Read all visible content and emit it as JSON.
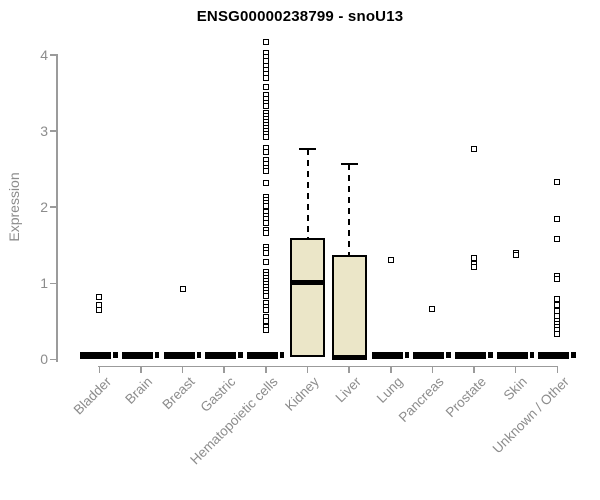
{
  "chart_data": {
    "type": "boxplot",
    "title": "ENSG00000238799 - snoU13",
    "ylabel": "Expression",
    "ylim": [
      0,
      4.3
    ],
    "yticks": [
      0,
      1,
      2,
      3,
      4
    ],
    "grid": false,
    "legend": "none",
    "colors": {
      "box_fill": "#EBE6C8",
      "ink": "#000000",
      "axis_line": "#9b9b9b",
      "label_gray": "#8c8c8c"
    },
    "categories": [
      {
        "label": "Bladder",
        "flat": true,
        "box": {
          "q1": 0,
          "median": 0,
          "q3": 0.02,
          "whisker_high": 0.02
        },
        "outliers": [
          0.82,
          0.72,
          0.65
        ]
      },
      {
        "label": "Brain",
        "flat": true,
        "box": {
          "q1": 0,
          "median": 0,
          "q3": 0.02,
          "whisker_high": 0.02
        },
        "outliers": []
      },
      {
        "label": "Breast",
        "flat": true,
        "box": {
          "q1": 0,
          "median": 0,
          "q3": 0.02,
          "whisker_high": 0.02
        },
        "outliers": [
          0.92
        ]
      },
      {
        "label": "Gastric",
        "flat": true,
        "box": {
          "q1": 0,
          "median": 0,
          "q3": 0.02,
          "whisker_high": 0.02
        },
        "outliers": []
      },
      {
        "label": "Hematopoietic cells",
        "flat": true,
        "box": {
          "q1": 0,
          "median": 0,
          "q3": 0.02,
          "whisker_high": 0.02
        },
        "outliers": [
          4.17,
          4.03,
          3.97,
          3.92,
          3.85,
          3.8,
          3.75,
          3.7,
          3.58,
          3.47,
          3.42,
          3.37,
          3.33,
          3.24,
          3.2,
          3.16,
          3.12,
          3.08,
          3.04,
          3.0,
          2.96,
          2.92,
          2.78,
          2.73,
          2.62,
          2.57,
          2.52,
          2.47,
          2.32,
          2.13,
          2.1,
          2.06,
          2.02,
          1.94,
          1.89,
          1.84,
          1.79,
          1.7,
          1.66,
          1.48,
          1.44,
          1.4,
          1.28,
          1.15,
          1.11,
          1.07,
          1.03,
          0.99,
          0.95,
          0.91,
          0.87,
          0.83,
          0.74,
          0.69,
          0.65,
          0.56,
          0.51,
          0.43,
          0.38
        ]
      },
      {
        "label": "Kidney",
        "flat": false,
        "box": {
          "q1": 0.03,
          "median": 1.01,
          "q3": 1.59,
          "whisker_high": 2.77
        },
        "outliers": []
      },
      {
        "label": "Liver",
        "flat": false,
        "box": {
          "q1": 0.0,
          "median": 0.03,
          "q3": 1.37,
          "whisker_high": 2.57
        },
        "outliers": []
      },
      {
        "label": "Lung",
        "flat": true,
        "box": {
          "q1": 0,
          "median": 0,
          "q3": 0.02,
          "whisker_high": 0.02
        },
        "outliers": [
          1.31
        ]
      },
      {
        "label": "Pancreas",
        "flat": true,
        "box": {
          "q1": 0,
          "median": 0,
          "q3": 0.02,
          "whisker_high": 0.02
        },
        "outliers": [
          0.66
        ]
      },
      {
        "label": "Prostate",
        "flat": true,
        "box": {
          "q1": 0,
          "median": 0,
          "q3": 0.02,
          "whisker_high": 0.02
        },
        "outliers": [
          2.77,
          1.33,
          1.26,
          1.21
        ]
      },
      {
        "label": "Skin",
        "flat": true,
        "box": {
          "q1": 0,
          "median": 0,
          "q3": 0.02,
          "whisker_high": 0.02
        },
        "outliers": [
          1.4,
          1.37
        ]
      },
      {
        "label": "Unknown / Other",
        "flat": true,
        "box": {
          "q1": 0,
          "median": 0,
          "q3": 0.02,
          "whisker_high": 0.02
        },
        "outliers": [
          2.33,
          1.84,
          1.58,
          1.1,
          1.06,
          0.8,
          0.71,
          0.64,
          0.57,
          0.5,
          0.46,
          0.42,
          0.38,
          0.34
        ]
      }
    ]
  }
}
